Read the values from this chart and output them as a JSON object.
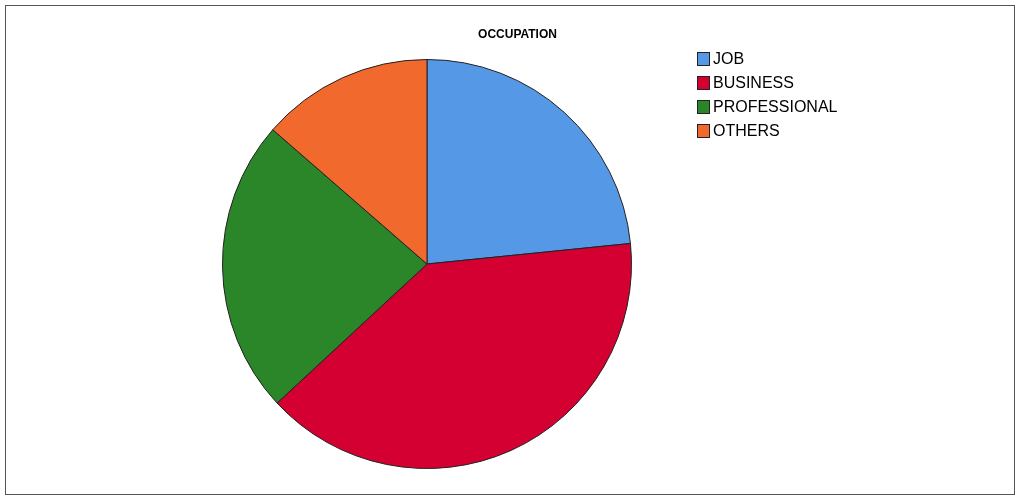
{
  "chart_data": {
    "type": "pie",
    "title": "OCCUPATION",
    "categories": [
      "JOB",
      "BUSINESS",
      "PROFESSIONAL",
      "OTHERS"
    ],
    "values": [
      23.4,
      39.7,
      23.3,
      13.6
    ],
    "colors": [
      "#5598e6",
      "#d50032",
      "#2a8628",
      "#f2692d"
    ],
    "legend": "top right"
  }
}
